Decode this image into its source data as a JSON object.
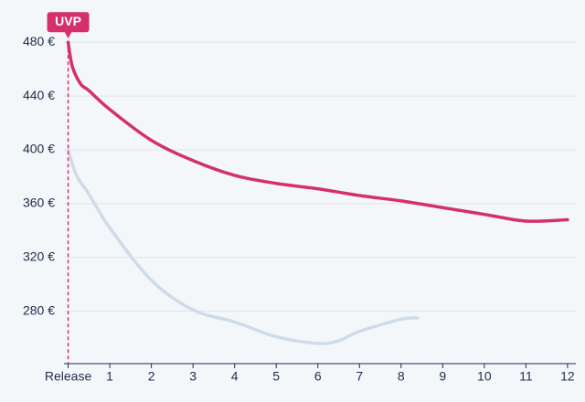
{
  "chart_data": {
    "type": "line",
    "xlim": [
      -0.1,
      12.2
    ],
    "ylim": [
      241,
      491
    ],
    "xticks": [
      {
        "value": 0,
        "label": "Release"
      },
      1,
      2,
      3,
      4,
      5,
      6,
      7,
      8,
      9,
      10,
      11,
      12
    ],
    "yticks": [
      {
        "value": 280,
        "label": "280 €"
      },
      {
        "value": 320,
        "label": "320 €"
      },
      {
        "value": 360,
        "label": "360 €"
      },
      {
        "value": 400,
        "label": "400 €"
      },
      {
        "value": 440,
        "label": "440 €"
      },
      {
        "value": 480,
        "label": "480 €"
      }
    ],
    "grid": true,
    "series": [
      {
        "color": "#cfdbe8",
        "x": [
          0,
          0.2,
          0.5,
          1,
          2,
          3,
          4,
          5,
          6,
          6.5,
          7,
          8,
          8.4
        ],
        "values": [
          400,
          381,
          367,
          342,
          303,
          281,
          272,
          261,
          256,
          258,
          265,
          274,
          275
        ]
      },
      {
        "color": "#d4306b",
        "x": [
          0,
          0.1,
          0.3,
          0.5,
          1,
          2,
          3,
          4,
          5,
          6,
          7,
          8,
          9,
          10,
          11,
          12
        ],
        "values": [
          480,
          462,
          449,
          444,
          430,
          407,
          392,
          381,
          375,
          371,
          366,
          362,
          357,
          352,
          347,
          348
        ]
      }
    ],
    "annotation": {
      "text": "UVP",
      "x": 0,
      "y": 480,
      "color": "#d4306b"
    }
  }
}
